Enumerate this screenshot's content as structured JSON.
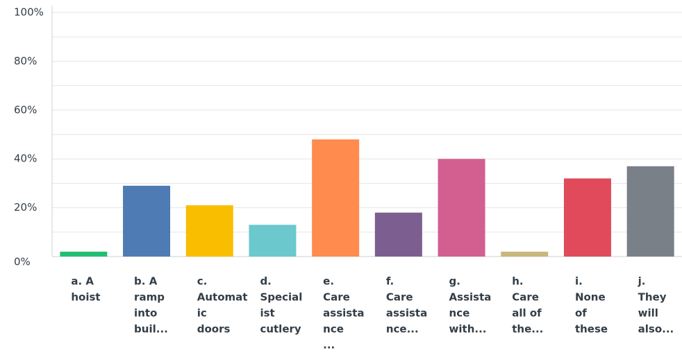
{
  "chart_data": {
    "type": "bar",
    "categories": [
      [
        "a. A",
        "hoist"
      ],
      [
        "b. A",
        "ramp",
        "into",
        "buil..."
      ],
      [
        "c.",
        "Automat",
        "ic",
        "doors"
      ],
      [
        "d.",
        "Special",
        "ist",
        "cutlery"
      ],
      [
        "e.",
        "Care",
        "assista",
        "nce",
        "..."
      ],
      [
        "f.",
        "Care",
        "assista",
        "nce..."
      ],
      [
        "g.",
        "Assista",
        "nce",
        "with..."
      ],
      [
        "h.",
        "Care",
        "all of",
        "the..."
      ],
      [
        "i.",
        "None",
        "of",
        "these"
      ],
      [
        "j.",
        "They",
        "will",
        "also..."
      ]
    ],
    "values": [
      2,
      29,
      21,
      13,
      48,
      18,
      40,
      2,
      32,
      37
    ],
    "colors": [
      "#21bf73",
      "#4f7bb5",
      "#f9be00",
      "#6bc8cc",
      "#ff8b4f",
      "#7d5e90",
      "#d25f90",
      "#c9b77d",
      "#e04a5a",
      "#7a8088"
    ],
    "ylim": [
      0,
      100
    ],
    "yticks": [
      {
        "value": 0,
        "label": "0%"
      },
      {
        "value": 20,
        "label": "20%"
      },
      {
        "value": 40,
        "label": "40%"
      },
      {
        "value": 60,
        "label": "60%"
      },
      {
        "value": 80,
        "label": "80%"
      },
      {
        "value": 100,
        "label": "100%"
      }
    ],
    "minor_yticks": [
      10,
      30,
      50,
      70,
      90
    ],
    "grid": true
  }
}
